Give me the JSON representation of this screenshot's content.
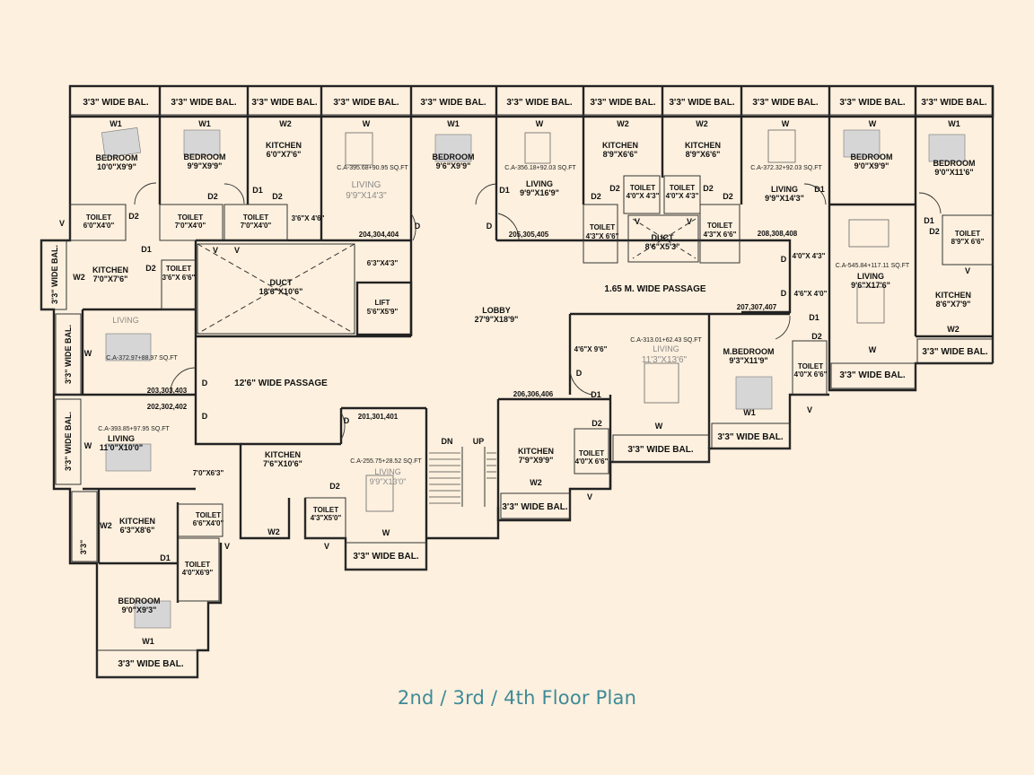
{
  "caption": "2nd / 3rd / 4th Floor Plan",
  "colors": {
    "background": "#fdf0de",
    "wall": "#222222",
    "caption": "#3d8a98"
  },
  "balconies": {
    "top": [
      "3'3\" WIDE BAL.",
      "3'3\" WIDE BAL.",
      "3'3\" WIDE BAL.",
      "3'3\" WIDE BAL.",
      "3'3\" WIDE BAL.",
      "3'3\" WIDE BAL.",
      "3'3\" WIDE BAL.",
      "3'3\" WIDE BAL.",
      "3'3\" WIDE BAL.",
      "3'3\" WIDE BAL.",
      "3'3\" WIDE BAL."
    ],
    "left": [
      "3'3\" WIDE BAL.",
      "3'3\" WIDE BAL.",
      "3'3\" WIDE BAL.",
      "3'3\"",
      "3'3\" WIDE BAL."
    ],
    "bottom": [
      "3'3\" WIDE BAL.",
      "3'3\" WIDE BAL.",
      "3'3\" WIDE BAL.",
      "3'3\" WIDE BAL.",
      "3'3\" WIDE BAL.",
      "3'3\" WIDE BAL.",
      "3'3\" WIDE BAL."
    ]
  },
  "rooms": {
    "bedroom_1": "BEDROOM",
    "bedroom_1_size": "10'0\"X9'9\"",
    "bedroom_2": "BEDROOM",
    "bedroom_2_size": "9'9\"X9'9\"",
    "kitchen_1": "KITCHEN",
    "kitchen_1_size": "6'0\"X7'6\"",
    "living_1": "LIVING",
    "living_1_size": "9'9\"X14'3\"",
    "living_1_area": "C.A-395.68+90.95 SQ.FT",
    "bedroom_3": "BEDROOM",
    "bedroom_3_size": "9'6\"X9'9\"",
    "living_2": "LIVING",
    "living_2_size": "9'9\"X16'9\"",
    "living_2_area": "C.A-356.18+92.03 SQ.FT",
    "kitchen_2": "KITCHEN",
    "kitchen_2_size": "8'9\"X6'6\"",
    "kitchen_3": "KITCHEN",
    "kitchen_3_size": "8'9\"X6'6\"",
    "living_3": "LIVING",
    "living_3_size": "9'9\"X14'3\"",
    "living_3_area": "C.A-372.32+92.03 SQ.FT",
    "bedroom_4": "BEDROOM",
    "bedroom_4_size": "9'0\"X9'9\"",
    "bedroom_5": "BEDROOM",
    "bedroom_5_size": "9'0\"X11'6\"",
    "kitchen_4": "KITCHEN",
    "kitchen_4_size": "7'0\"X7'6\"",
    "living_4": "LIVING",
    "living_4_area": "C.A-372.97+88.97 SQ.FT",
    "living_5": "LIVING",
    "living_5_size": "11'0\"X10'0\"",
    "living_5_area": "C.A-393.85+97.95 SQ.FT",
    "kitchen_5": "KITCHEN",
    "kitchen_5_size": "6'3\"X8'6\"",
    "bedroom_6": "BEDROOM",
    "bedroom_6_size": "9'0\"X9'3\"",
    "kitchen_6": "KITCHEN",
    "kitchen_6_size": "7'6\"X10'6\"",
    "living_6": "LIVING",
    "living_6_size": "9'9\"X13'0\"",
    "living_6_area": "C.A-255.75+28.52 SQ.FT",
    "kitchen_7": "KITCHEN",
    "kitchen_7_size": "7'9\"X9'9\"",
    "living_7": "LIVING",
    "living_7_size": "11'3\"X13'6\"",
    "living_7_area": "C.A-313.01+62.43 SQ.FT",
    "mbedroom": "M.BEDROOM",
    "mbedroom_size": "9'3\"X11'9\"",
    "living_8": "LIVING",
    "living_8_size": "9'6\"X17'6\"",
    "living_8_area": "C.A-545.84+117.11 SQ.FT",
    "kitchen_8": "KITCHEN",
    "kitchen_8_size": "8'6\"X7'9\""
  },
  "toilets": {
    "label": "TOILET",
    "t1": "6'0\"X4'0\"",
    "t2": "7'0\"X4'0\"",
    "t3": "7'0\"X4'0\"",
    "t4": "3'6\"X 6'6\"",
    "t5": "4'3\"X 6'6\"",
    "t6": "4'0\"X 4'3\"",
    "t7": "4'0\"X 4'3\"",
    "t8": "4'3\"X 6'6\"",
    "t9": "8'9\"X 6'6\"",
    "t10": "4'0\"X 6'6\"",
    "t11": "4'0\"X 6'6\"",
    "t12": "4'3\"X5'0\"",
    "t13": "6'6\"X4'0\"",
    "t14": "4'0\"X6'9\""
  },
  "common": {
    "duct_main": "DUCT",
    "duct_main_size": "18'6\"X10'6\"",
    "lift": "LIFT",
    "lift_size": "5'6\"X5'9\"",
    "lobby": "LOBBY",
    "lobby_size": "27'9\"X18'9\"",
    "passage_12": "12'6\" WIDE PASSAGE",
    "passage_165": "1.65 M. WIDE PASSAGE",
    "duct_small": "DUCT",
    "duct_small_size": "8'6\"X5'3\"",
    "stair_dn": "DN",
    "stair_up": "UP",
    "dim_63x43": "6'3\"X4'3\"",
    "dim_36x46": "3'6\"X 4'6\"",
    "dim_46x96": "4'6\"X 9'6\"",
    "dim_40x43": "4'0\"X 4'3\"",
    "dim_46x40": "4'6\"X 4'0\"",
    "dim_70x63": "7'0\"X6'3\""
  },
  "flat_numbers": [
    "204,304,404",
    "205,305,405",
    "206,306,406",
    "207,307,407",
    "203,303,403",
    "202,302,402",
    "201,301,401",
    "208,308,408"
  ],
  "tags": {
    "w": "W",
    "w1": "W1",
    "w2": "W2",
    "d": "D",
    "d1": "D1",
    "d2": "D2",
    "v": "V"
  }
}
